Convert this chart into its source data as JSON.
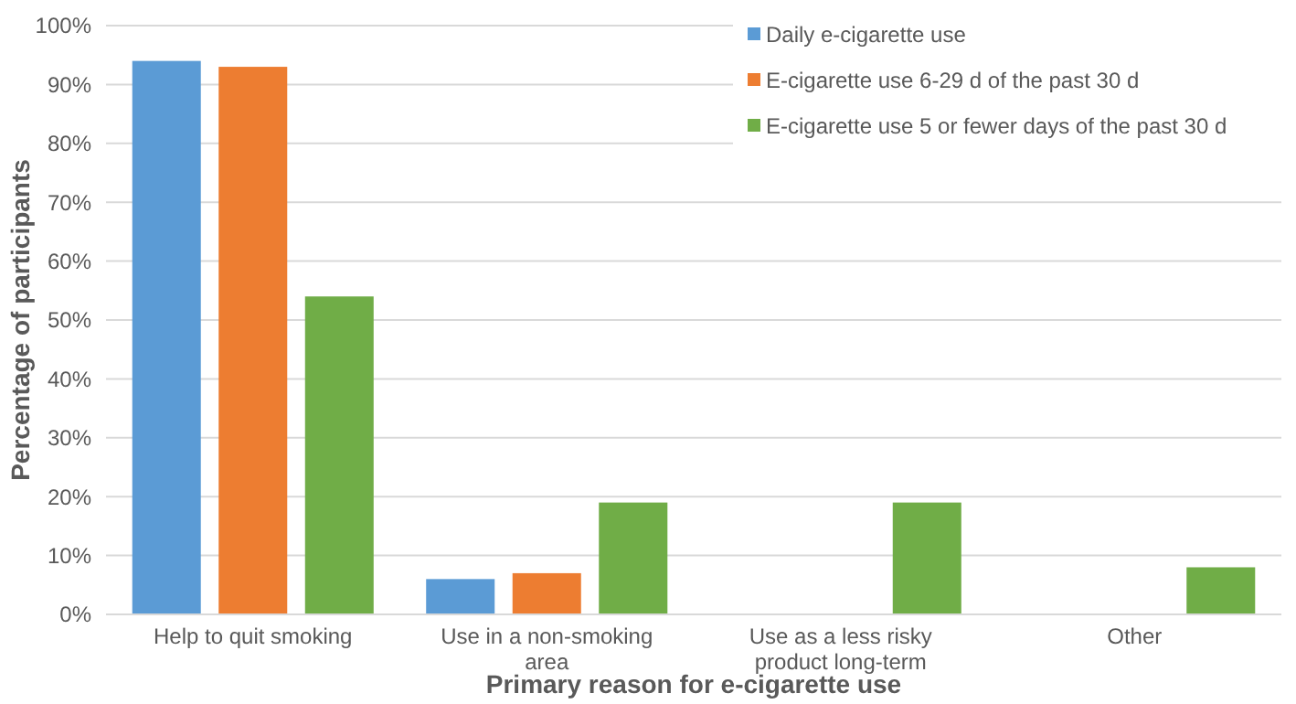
{
  "chart_data": {
    "type": "bar",
    "xlabel": "Primary reason for e-cigarette use",
    "ylabel": "Percentage of participants",
    "categories": [
      "Help to quit smoking",
      "Use in a non-smoking area",
      "Use as a less risky product long-term",
      "Other"
    ],
    "series": [
      {
        "name": "Daily e-cigarette use",
        "color": "#5b9bd5",
        "values": [
          94,
          6,
          0,
          0
        ]
      },
      {
        "name": "E-cigarette use 6-29 d of the past 30 d",
        "color": "#ed7d31",
        "values": [
          93,
          7,
          0,
          0
        ]
      },
      {
        "name": "E-cigarette use 5 or fewer days of the past 30 d",
        "color": "#70ad47",
        "values": [
          54,
          19,
          19,
          8
        ]
      }
    ],
    "ylim": [
      0,
      100
    ],
    "yticks": [
      {
        "value": 0,
        "label": "0%"
      },
      {
        "value": 10,
        "label": "10%"
      },
      {
        "value": 20,
        "label": "20%"
      },
      {
        "value": 30,
        "label": "30%"
      },
      {
        "value": 40,
        "label": "40%"
      },
      {
        "value": 50,
        "label": "50%"
      },
      {
        "value": 60,
        "label": "60%"
      },
      {
        "value": 70,
        "label": "70%"
      },
      {
        "value": 80,
        "label": "80%"
      },
      {
        "value": 90,
        "label": "90%"
      },
      {
        "value": 100,
        "label": "100%"
      }
    ],
    "grid": "y",
    "legend": "top right"
  }
}
